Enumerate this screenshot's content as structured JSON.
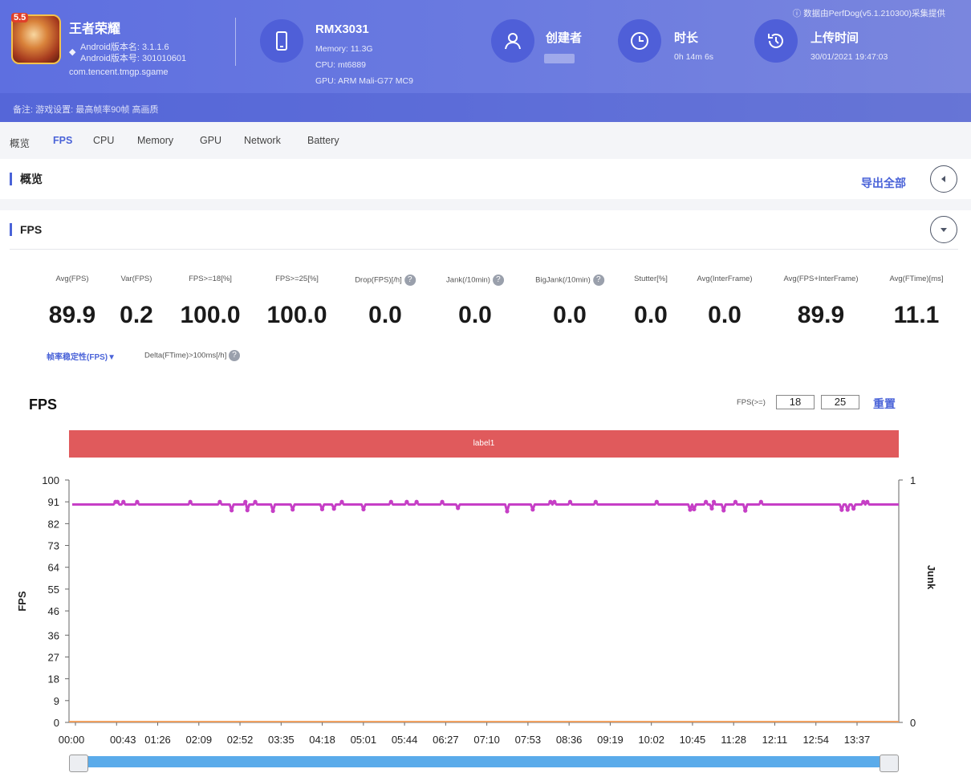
{
  "header": {
    "top_note": "ⓘ 数据由PerfDog(v5.1.210300)采集提供",
    "app": {
      "badge": "5.5",
      "name": "王者荣耀",
      "android_version": "Android版本名: 3.1.1.6",
      "android_code": "Android版本号: 301010601",
      "package": "com.tencent.tmgp.sgame"
    },
    "device": {
      "model": "RMX3031",
      "memory": "Memory: 11.3G",
      "cpu": "CPU: mt6889",
      "gpu": "GPU: ARM Mali-G77 MC9"
    },
    "creator": {
      "title": "创建者",
      "value": ""
    },
    "duration": {
      "title": "时长",
      "value": "0h 14m 6s"
    },
    "upload": {
      "title": "上传时间",
      "value": "30/01/2021 19:47:03"
    },
    "remark": "备注: 游戏设置: 最高帧率90帧 高画质"
  },
  "tabs": [
    "概览",
    "FPS",
    "CPU",
    "Memory",
    "GPU",
    "Network",
    "Battery"
  ],
  "overview": {
    "title": "概览",
    "export_label": "导出全部"
  },
  "fps_section": {
    "title": "FPS"
  },
  "stats": [
    {
      "label": "Avg(FPS)",
      "value": "89.9",
      "help": false
    },
    {
      "label": "Var(FPS)",
      "value": "0.2",
      "help": false
    },
    {
      "label": "FPS>=18[%]",
      "value": "100.0",
      "help": false
    },
    {
      "label": "FPS>=25[%]",
      "value": "100.0",
      "help": false
    },
    {
      "label": "Drop(FPS)[/h]",
      "value": "0.0",
      "help": true
    },
    {
      "label": "Jank(/10min)",
      "value": "0.0",
      "help": true
    },
    {
      "label": "BigJank(/10min)",
      "value": "0.0",
      "help": true
    },
    {
      "label": "Stutter[%]",
      "value": "0.0",
      "help": false
    },
    {
      "label": "Avg(InterFrame)",
      "value": "0.0",
      "help": false
    },
    {
      "label": "Avg(FPS+InterFrame)",
      "value": "89.9",
      "help": false
    },
    {
      "label": "Avg(FTime)[ms]",
      "value": "11.1",
      "help": false
    }
  ],
  "extra": {
    "left": "帧率稳定性(FPS)▼",
    "right": "Delta(FTime)>100ms[/h]"
  },
  "chart": {
    "title": "FPS",
    "threshold_label": "FPS(>=)",
    "threshold_1": "18",
    "threshold_2": "25",
    "reset_label": "重置",
    "label_bar": "label1"
  },
  "colors": {
    "accent": "#4a63d8",
    "fps_line": "#c63fc6",
    "jank_line": "#f0a060",
    "label_bar": "#e05a5c",
    "scrollbar": "#5aabea"
  },
  "chart_data": {
    "type": "line",
    "title": "FPS",
    "xlabel": "",
    "ylabel": "FPS",
    "y2label": "Junk",
    "ylim": [
      0,
      100
    ],
    "y2lim": [
      0,
      1
    ],
    "yticks": [
      0,
      9,
      18,
      27,
      36,
      46,
      55,
      64,
      73,
      82,
      91,
      100
    ],
    "y2ticks": [
      0,
      1
    ],
    "xticks": [
      "00:00",
      "00:43",
      "01:26",
      "02:09",
      "02:52",
      "03:35",
      "04:18",
      "05:01",
      "05:44",
      "06:27",
      "07:10",
      "07:53",
      "08:36",
      "09:19",
      "10:02",
      "10:45",
      "11:28",
      "12:11",
      "12:54",
      "13:37"
    ],
    "grid": false,
    "legend": "none",
    "series": [
      {
        "name": "FPS",
        "axis": "left",
        "value_approx": 89.9,
        "range": [
          87,
          91
        ],
        "color": "#c63fc6"
      },
      {
        "name": "Junk",
        "axis": "right",
        "value_approx": 0,
        "color": "#f0a060"
      }
    ]
  }
}
